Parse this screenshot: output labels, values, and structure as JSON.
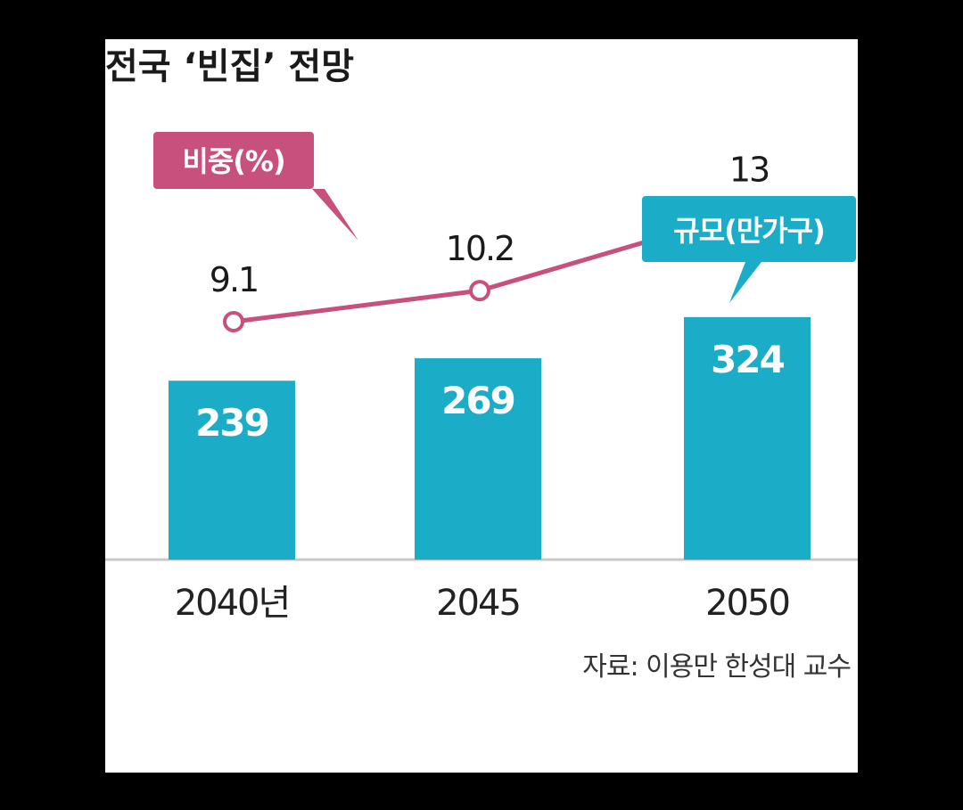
{
  "chart_data": {
    "type": "bar+line",
    "title": "전국 ‘빈집’ 전망",
    "categories": [
      "2040년",
      "2045",
      "2050"
    ],
    "bar_series": {
      "name": "규모(만가구)",
      "values": [
        239,
        269,
        324
      ],
      "value_labels": [
        "239",
        "269",
        "324"
      ],
      "color": "#1badc8"
    },
    "line_series": {
      "name": "비중(%)",
      "values": [
        9.1,
        10.2,
        13
      ],
      "value_labels": [
        "9.1",
        "10.2",
        "13"
      ],
      "color": "#c8507c"
    },
    "source": "자료: 이용만 한성대 교수"
  },
  "colors": {
    "bar": "#1badc8",
    "line": "#c8507c",
    "axis": "#c8c8c8",
    "background": "#ffffff"
  }
}
